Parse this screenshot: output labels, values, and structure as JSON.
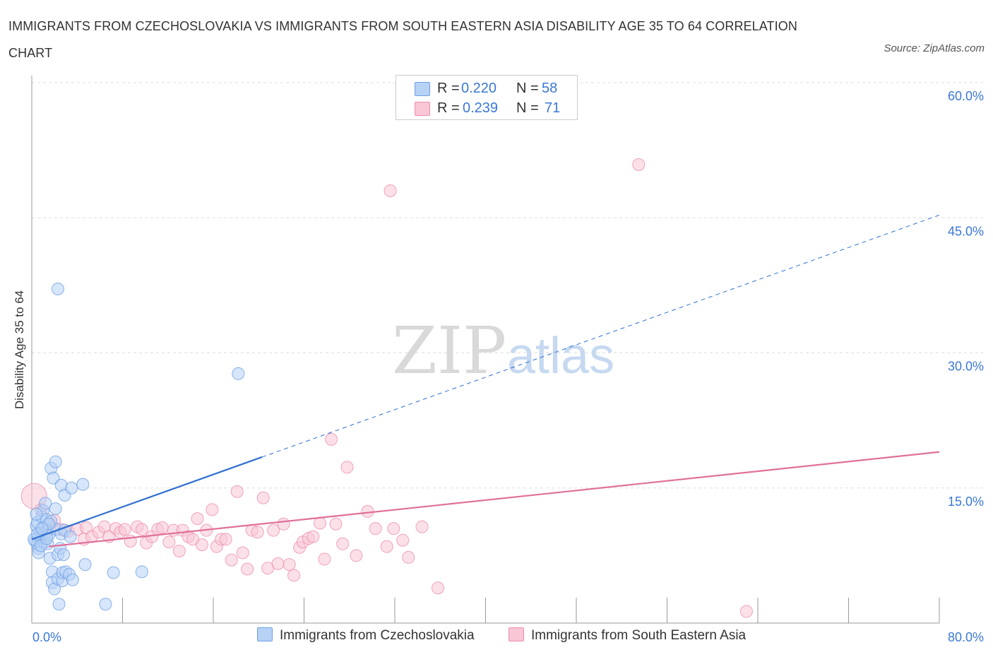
{
  "title": "IMMIGRANTS FROM CZECHOSLOVAKIA VS IMMIGRANTS FROM SOUTH EASTERN ASIA DISABILITY AGE 35 TO 64 CORRELATION CHART",
  "source": "Source: ZipAtlas.com",
  "watermark": {
    "zip": "ZIP",
    "atlas": "atlas"
  },
  "legend": {
    "r_label": "R =",
    "n_label": "N =",
    "rows": [
      {
        "r": "0.220",
        "n": "58"
      },
      {
        "r": "0.239",
        "n": "71"
      }
    ]
  },
  "colors": {
    "blue_fill": "#b7d2f5",
    "blue_stroke": "#6fa0e3",
    "blue_line": "#2f6fd0",
    "pink_fill": "#f8c6d5",
    "pink_stroke": "#ee8fae",
    "pink_line": "#e0709a",
    "axis_text": "#3a78d6",
    "grid": "#dddddd"
  },
  "chart_data": {
    "type": "scatter",
    "title": "IMMIGRANTS FROM CZECHOSLOVAKIA VS IMMIGRANTS FROM SOUTH EASTERN ASIA DISABILITY AGE 35 TO 64 CORRELATION CHART",
    "xlabel": "",
    "ylabel": "Disability Age 35 to 64",
    "xlim": [
      0,
      80
    ],
    "ylim": [
      0,
      60
    ],
    "x_tick_labels": [
      "0.0%",
      "80.0%"
    ],
    "y_ticks": [
      15,
      30,
      45,
      60
    ],
    "y_tick_labels": [
      "15.0%",
      "30.0%",
      "45.0%",
      "60.0%"
    ],
    "grid": true,
    "legend_position": "top-center",
    "series": [
      {
        "name": "Immigrants from Czechoslovakia",
        "color": "blue",
        "R": 0.22,
        "N": 58,
        "trend": {
          "x_start": 0,
          "y_start": 9.3,
          "x_solid_end": 20.3,
          "x_end": 80,
          "y_end": 45.3
        },
        "points": [
          [
            0.3,
            9.1
          ],
          [
            0.4,
            10.8
          ],
          [
            0.5,
            8.7
          ],
          [
            0.5,
            11.2
          ],
          [
            0.6,
            9.6
          ],
          [
            0.6,
            8.3
          ],
          [
            0.7,
            10.0
          ],
          [
            0.8,
            9.5
          ],
          [
            0.9,
            11.8
          ],
          [
            1.0,
            12.5
          ],
          [
            1.1,
            9.0
          ],
          [
            1.1,
            10.6
          ],
          [
            1.2,
            13.3
          ],
          [
            1.3,
            11.5
          ],
          [
            1.4,
            8.8
          ],
          [
            1.4,
            10.2
          ],
          [
            1.5,
            9.8
          ],
          [
            1.6,
            7.2
          ],
          [
            1.7,
            11.3
          ],
          [
            1.7,
            17.2
          ],
          [
            1.8,
            5.7
          ],
          [
            1.8,
            4.5
          ],
          [
            1.9,
            16.1
          ],
          [
            2.0,
            3.8
          ],
          [
            2.1,
            12.7
          ],
          [
            2.1,
            17.9
          ],
          [
            2.2,
            10.4
          ],
          [
            2.3,
            4.9
          ],
          [
            2.3,
            7.6
          ],
          [
            2.3,
            37.1
          ],
          [
            2.4,
            2.1
          ],
          [
            2.5,
            8.3
          ],
          [
            2.6,
            15.3
          ],
          [
            2.6,
            9.9
          ],
          [
            2.7,
            4.7
          ],
          [
            2.7,
            5.6
          ],
          [
            2.8,
            7.6
          ],
          [
            2.9,
            14.2
          ],
          [
            2.9,
            10.3
          ],
          [
            3.0,
            5.7
          ],
          [
            3.3,
            5.4
          ],
          [
            3.4,
            9.6
          ],
          [
            3.5,
            15.0
          ],
          [
            3.6,
            4.8
          ],
          [
            4.5,
            15.4
          ],
          [
            4.7,
            6.5
          ],
          [
            6.5,
            2.1
          ],
          [
            7.2,
            5.6
          ],
          [
            9.7,
            5.7
          ],
          [
            18.2,
            27.7
          ],
          [
            0.2,
            9.3
          ],
          [
            0.4,
            12.1
          ],
          [
            0.6,
            7.8
          ],
          [
            1.5,
            11.0
          ],
          [
            0.8,
            8.6
          ],
          [
            1.3,
            9.4
          ],
          [
            0.5,
            9.9
          ],
          [
            0.9,
            10.5
          ]
        ]
      },
      {
        "name": "Immigrants from South Eastern Asia",
        "color": "pink",
        "R": 0.239,
        "N": 71,
        "trend": {
          "x_start": 1.5,
          "y_start": 8.5,
          "x_end": 80,
          "y_end": 19.0
        },
        "points": [
          [
            0.2,
            14.1
          ],
          [
            0.8,
            12.6
          ],
          [
            1.3,
            10.4
          ],
          [
            1.6,
            11.0
          ],
          [
            2.0,
            11.4
          ],
          [
            2.6,
            10.4
          ],
          [
            3.2,
            10.2
          ],
          [
            4.0,
            10.4
          ],
          [
            4.6,
            9.3
          ],
          [
            4.8,
            10.6
          ],
          [
            5.3,
            9.6
          ],
          [
            5.9,
            10.1
          ],
          [
            6.4,
            10.7
          ],
          [
            6.8,
            9.6
          ],
          [
            7.4,
            10.5
          ],
          [
            7.8,
            10.1
          ],
          [
            8.2,
            10.4
          ],
          [
            8.7,
            9.1
          ],
          [
            9.3,
            10.7
          ],
          [
            9.7,
            10.4
          ],
          [
            10.1,
            8.9
          ],
          [
            10.6,
            9.6
          ],
          [
            11.1,
            10.4
          ],
          [
            11.5,
            10.6
          ],
          [
            12.1,
            9.0
          ],
          [
            12.5,
            10.3
          ],
          [
            13.0,
            8.0
          ],
          [
            13.3,
            10.3
          ],
          [
            13.8,
            9.6
          ],
          [
            14.2,
            9.3
          ],
          [
            14.6,
            11.6
          ],
          [
            15.0,
            8.7
          ],
          [
            15.4,
            10.3
          ],
          [
            15.9,
            12.6
          ],
          [
            16.3,
            8.5
          ],
          [
            16.7,
            9.3
          ],
          [
            17.1,
            9.3
          ],
          [
            17.6,
            7.0
          ],
          [
            18.1,
            14.6
          ],
          [
            18.6,
            7.8
          ],
          [
            19.0,
            6.0
          ],
          [
            19.4,
            10.3
          ],
          [
            19.9,
            10.1
          ],
          [
            20.4,
            13.9
          ],
          [
            20.8,
            6.1
          ],
          [
            21.3,
            10.3
          ],
          [
            21.7,
            6.6
          ],
          [
            22.2,
            11.0
          ],
          [
            22.7,
            6.5
          ],
          [
            23.1,
            5.3
          ],
          [
            23.6,
            8.4
          ],
          [
            23.9,
            9.0
          ],
          [
            24.4,
            9.4
          ],
          [
            24.8,
            9.6
          ],
          [
            25.4,
            11.1
          ],
          [
            25.8,
            7.1
          ],
          [
            26.4,
            20.4
          ],
          [
            26.8,
            11.0
          ],
          [
            27.4,
            8.8
          ],
          [
            27.8,
            17.3
          ],
          [
            28.6,
            7.5
          ],
          [
            29.6,
            12.4
          ],
          [
            30.3,
            10.5
          ],
          [
            31.3,
            8.5
          ],
          [
            31.9,
            10.5
          ],
          [
            32.7,
            9.2
          ],
          [
            33.2,
            7.3
          ],
          [
            34.4,
            10.7
          ],
          [
            35.8,
            3.9
          ],
          [
            53.5,
            50.9
          ],
          [
            63.0,
            1.3
          ]
        ],
        "outlier_note": [
          [
            31.6,
            48.0
          ]
        ]
      }
    ]
  },
  "axis_labels": {
    "x_min": "0.0%",
    "x_max": "80.0%"
  }
}
